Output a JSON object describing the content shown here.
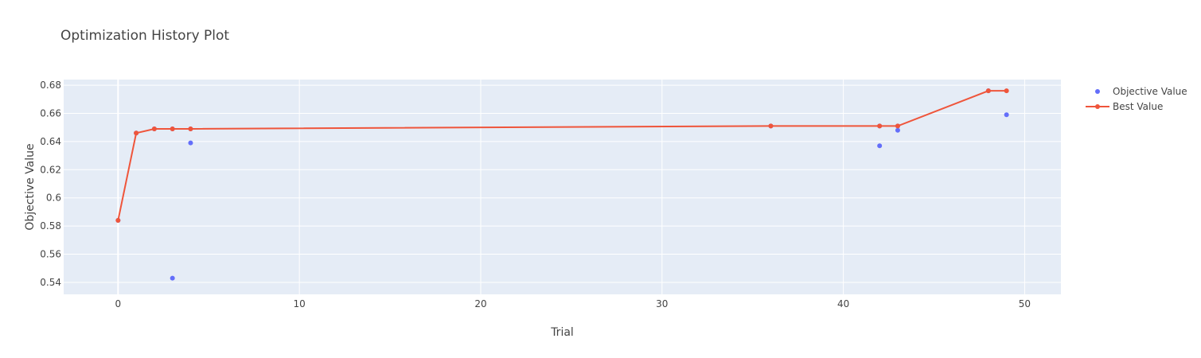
{
  "chart_data": {
    "type": "scatter",
    "title": "Optimization History Plot",
    "xlabel": "Trial",
    "ylabel": "Objective Value",
    "xlim": [
      -3,
      52
    ],
    "ylim": [
      0.5315,
      0.684
    ],
    "x_ticks": [
      0,
      10,
      20,
      30,
      40,
      50
    ],
    "y_ticks": [
      0.54,
      0.56,
      0.58,
      0.6,
      0.62,
      0.64,
      0.66,
      0.68
    ],
    "y_tick_labels": [
      "0.54",
      "0.56",
      "0.58",
      "0.6",
      "0.62",
      "0.64",
      "0.66",
      "0.68"
    ],
    "grid": true,
    "legend_position": "top-right",
    "series": [
      {
        "name": "Objective Value",
        "mode": "markers",
        "color": "#636efa",
        "x": [
          0,
          1,
          2,
          3,
          3,
          4,
          4,
          36,
          42,
          42,
          43,
          43,
          48,
          49
        ],
        "y": [
          0.584,
          0.646,
          0.649,
          0.649,
          0.543,
          0.649,
          0.639,
          0.651,
          0.637,
          0.651,
          0.648,
          0.651,
          0.676,
          0.659
        ]
      },
      {
        "name": "Best Value",
        "mode": "lines+markers",
        "color": "#ef553b",
        "x": [
          0,
          1,
          2,
          3,
          4,
          36,
          42,
          43,
          48,
          49
        ],
        "y": [
          0.584,
          0.646,
          0.649,
          0.649,
          0.649,
          0.651,
          0.651,
          0.651,
          0.676,
          0.676
        ]
      }
    ]
  },
  "colors": {
    "plot_background": "#e5ecf6",
    "grid": "#ffffff",
    "text": "#444444"
  }
}
